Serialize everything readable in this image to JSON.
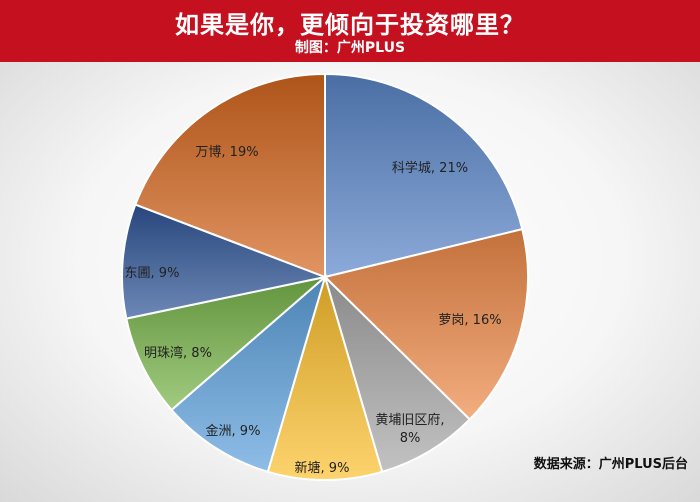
{
  "header": {
    "title": "如果是你，更倾向于投资哪里？",
    "subtitle": "制图：广州PLUS"
  },
  "source": "数据来源：广州PLUS后台",
  "chart_data": {
    "type": "pie",
    "title": "如果是你，更倾向于投资哪里？",
    "slices": [
      {
        "name": "科学城",
        "value": 21,
        "label": "科学城, 21%",
        "color": "#5a86c8"
      },
      {
        "name": "萝岗",
        "value": 16,
        "label": "萝岗, 16%",
        "color": "#ee8a48"
      },
      {
        "name": "黄埔旧区府",
        "value": 8,
        "label": "黄埔旧区府, 8%",
        "color": "#a8a8a8"
      },
      {
        "name": "新塘",
        "value": 9,
        "label": "新塘, 9%",
        "color": "#fcc02e"
      },
      {
        "name": "金洲",
        "value": 9,
        "label": "金洲, 9%",
        "color": "#5da1dc"
      },
      {
        "name": "明珠湾",
        "value": 8,
        "label": "明珠湾, 8%",
        "color": "#78b54a"
      },
      {
        "name": "东圃",
        "value": 9,
        "label": "东圃, 9%",
        "color": "#2f5597"
      },
      {
        "name": "万博",
        "value": 19,
        "label": "万博, 19%",
        "color": "#d4661f"
      }
    ]
  }
}
